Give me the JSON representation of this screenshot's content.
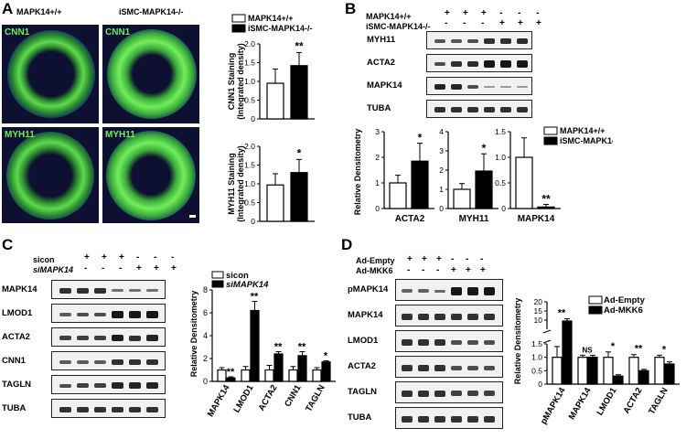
{
  "panels": {
    "A": {
      "label": "A",
      "col1": "MAPK14+/+",
      "col2": "iSMC-MAPK14-/-",
      "row1_stain": "CNN1",
      "row2_stain": "MYH11"
    },
    "B": {
      "label": "B",
      "row_labels": [
        "MAPK14+/+",
        "iSMC-MAPK14-/-"
      ],
      "signs_row1": [
        "+",
        "+",
        "+",
        "-",
        "-",
        "-"
      ],
      "signs_row2": [
        "-",
        "-",
        "-",
        "+",
        "+",
        "+"
      ],
      "blots": [
        "MYH11",
        "ACTA2",
        "MAPK14",
        "TUBA"
      ]
    },
    "C": {
      "label": "C",
      "row_labels": [
        "sicon",
        "siMAPK14"
      ],
      "signs_row1": [
        "+",
        "+",
        "+",
        "-",
        "-",
        "-"
      ],
      "signs_row2": [
        "-",
        "-",
        "-",
        "+",
        "+",
        "+"
      ],
      "blots": [
        "MAPK14",
        "LMOD1",
        "ACTA2",
        "CNN1",
        "TAGLN",
        "TUBA"
      ]
    },
    "D": {
      "label": "D",
      "row_labels": [
        "Ad-Empty",
        "Ad-MKK6"
      ],
      "signs_row1": [
        "+",
        "+",
        "+",
        "-",
        "-",
        "-"
      ],
      "signs_row2": [
        "-",
        "-",
        "-",
        "+",
        "+",
        "+"
      ],
      "blots": [
        "pMAPK14",
        "MAPK14",
        "LMOD1",
        "ACTA2",
        "TAGLN",
        "TUBA"
      ]
    }
  },
  "chart_data": [
    {
      "id": "A-cnn1",
      "type": "bar",
      "ylabel": "CNN1 Staining (Integrated density)",
      "legend": [
        "MAPK14+/+",
        "iSMC-MAPK14-/-"
      ],
      "categories": [
        "MAPK14+/+",
        "iSMC-MAPK14-/-"
      ],
      "values": [
        0.95,
        1.42
      ],
      "errors": [
        0.38,
        0.35
      ],
      "ylim": [
        0,
        2.0
      ],
      "ticks": [
        "0",
        "0.5",
        "1.0",
        "1.5",
        "2.0"
      ],
      "annotations": [
        "",
        "**"
      ]
    },
    {
      "id": "A-myh11",
      "type": "bar",
      "ylabel": "MYH11 Staining (Integrated density)",
      "categories": [
        "MAPK14+/+",
        "iSMC-MAPK14-/-"
      ],
      "values": [
        0.97,
        1.3
      ],
      "errors": [
        0.3,
        0.35
      ],
      "ylim": [
        0,
        2.0
      ],
      "ticks": [
        "0",
        "0.5",
        "1.0",
        "1.5",
        "2.0"
      ],
      "annotations": [
        "",
        "*"
      ]
    },
    {
      "id": "B-quant",
      "type": "bar",
      "ylabel": "Relative Densitometry",
      "legend": [
        "MAPK14+/+",
        "iSMC-MAPK14-/-"
      ],
      "groups": [
        {
          "name": "ACTA2",
          "values": [
            1.0,
            1.85
          ],
          "errors": [
            0.3,
            0.7
          ],
          "ylim": [
            0,
            3
          ],
          "ticks": [
            "0",
            "1",
            "2",
            "3"
          ],
          "annotations": [
            "",
            "*"
          ]
        },
        {
          "name": "MYH11",
          "values": [
            1.0,
            1.95
          ],
          "errors": [
            0.3,
            0.9
          ],
          "ylim": [
            0,
            4
          ],
          "ticks": [
            "0",
            "1",
            "2",
            "3",
            "4"
          ],
          "annotations": [
            "",
            "*"
          ]
        },
        {
          "name": "MAPK14",
          "values": [
            1.0,
            0.03
          ],
          "errors": [
            0.38,
            0.05
          ],
          "ylim": [
            0,
            1.5
          ],
          "ticks": [
            "0",
            "0.5",
            "1.0",
            "1.5"
          ],
          "annotations": [
            "",
            "**"
          ]
        }
      ]
    },
    {
      "id": "C-quant",
      "type": "bar",
      "ylabel": "Relative Densitometry",
      "legend": [
        "sicon",
        "siMAPK14"
      ],
      "categories": [
        "MAPK14",
        "LMOD1",
        "ACTA2",
        "CNN1",
        "TAGLN"
      ],
      "series": [
        {
          "name": "sicon",
          "values": [
            1.0,
            1.0,
            1.0,
            1.0,
            1.0
          ],
          "errors": [
            0.2,
            0.3,
            0.4,
            0.3,
            0.2
          ]
        },
        {
          "name": "siMAPK14",
          "values": [
            0.3,
            6.2,
            2.4,
            2.25,
            1.7
          ],
          "errors": [
            0.1,
            0.8,
            0.2,
            0.35,
            0.1
          ]
        }
      ],
      "ylim": [
        0,
        8
      ],
      "ticks": [
        "0",
        "2",
        "4",
        "6",
        "8"
      ],
      "annotations": [
        "**",
        "**",
        "**",
        "**",
        "*"
      ]
    },
    {
      "id": "D-quant",
      "type": "bar",
      "ylabel": "Relative Densitometry",
      "legend": [
        "Ad-Empty",
        "Ad-MKK6"
      ],
      "categories": [
        "pMAPK14",
        "MAPK14",
        "LMOD1",
        "ACTA2",
        "TAGLN"
      ],
      "series": [
        {
          "name": "Ad-Empty",
          "values": [
            1.0,
            1.0,
            1.0,
            1.0,
            1.0
          ],
          "errors": [
            0.4,
            0.08,
            0.2,
            0.1,
            0.08
          ]
        },
        {
          "name": "Ad-MKK6",
          "values": [
            9.5,
            1.0,
            0.3,
            0.5,
            0.75
          ],
          "errors": [
            1.2,
            0.07,
            0.05,
            0.05,
            0.08
          ]
        }
      ],
      "ylim_lower": [
        0,
        1.5
      ],
      "ticks_lower": [
        "0",
        "0.5",
        "1.0",
        "1.5"
      ],
      "ticks_upper": [
        "10",
        "15",
        "20"
      ],
      "annotations": [
        "**",
        "NS",
        "*",
        "**",
        "*"
      ]
    }
  ]
}
